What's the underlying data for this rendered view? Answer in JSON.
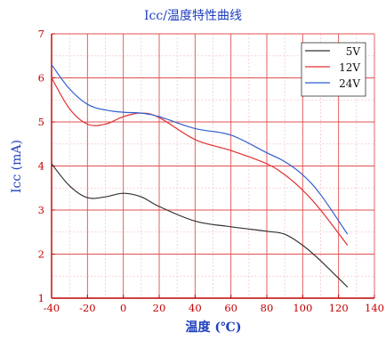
{
  "chart_data": {
    "type": "line",
    "title": "Icc/温度特性曲线",
    "xlabel": "温度 (℃)",
    "ylabel": "Icc (mA)",
    "xlim": [
      -40,
      140
    ],
    "ylim": [
      1,
      7
    ],
    "xticks": [
      -40,
      -20,
      0,
      20,
      40,
      60,
      80,
      100,
      120,
      140
    ],
    "yticks": [
      1,
      2,
      3,
      4,
      5,
      6,
      7
    ],
    "grid": true,
    "legend_position": "top-right",
    "colors": {
      "axis": "#c00000",
      "grid_major": "#e05050",
      "grid_minor": "#f2c8c8",
      "tick_label": "#c00000",
      "title": "#1f3fbf",
      "label": "#1f3fbf"
    },
    "series": [
      {
        "name": "5V",
        "color": "#333333",
        "x": [
          -40,
          -30,
          -20,
          -10,
          0,
          10,
          20,
          40,
          60,
          80,
          90,
          100,
          110,
          125
        ],
        "y": [
          4.05,
          3.55,
          3.28,
          3.3,
          3.38,
          3.3,
          3.08,
          2.75,
          2.62,
          2.52,
          2.45,
          2.2,
          1.85,
          1.25
        ]
      },
      {
        "name": "12V",
        "color": "#e03030",
        "x": [
          -40,
          -30,
          -20,
          -10,
          0,
          10,
          20,
          40,
          60,
          80,
          90,
          100,
          110,
          125
        ],
        "y": [
          6.0,
          5.3,
          4.95,
          4.95,
          5.12,
          5.2,
          5.1,
          4.6,
          4.35,
          4.05,
          3.8,
          3.45,
          3.0,
          2.2
        ]
      },
      {
        "name": "24V",
        "color": "#2f5fd0",
        "x": [
          -40,
          -30,
          -20,
          -10,
          0,
          10,
          20,
          40,
          60,
          80,
          90,
          100,
          110,
          125
        ],
        "y": [
          6.3,
          5.75,
          5.4,
          5.27,
          5.22,
          5.2,
          5.12,
          4.85,
          4.7,
          4.3,
          4.1,
          3.8,
          3.35,
          2.45
        ]
      }
    ]
  }
}
